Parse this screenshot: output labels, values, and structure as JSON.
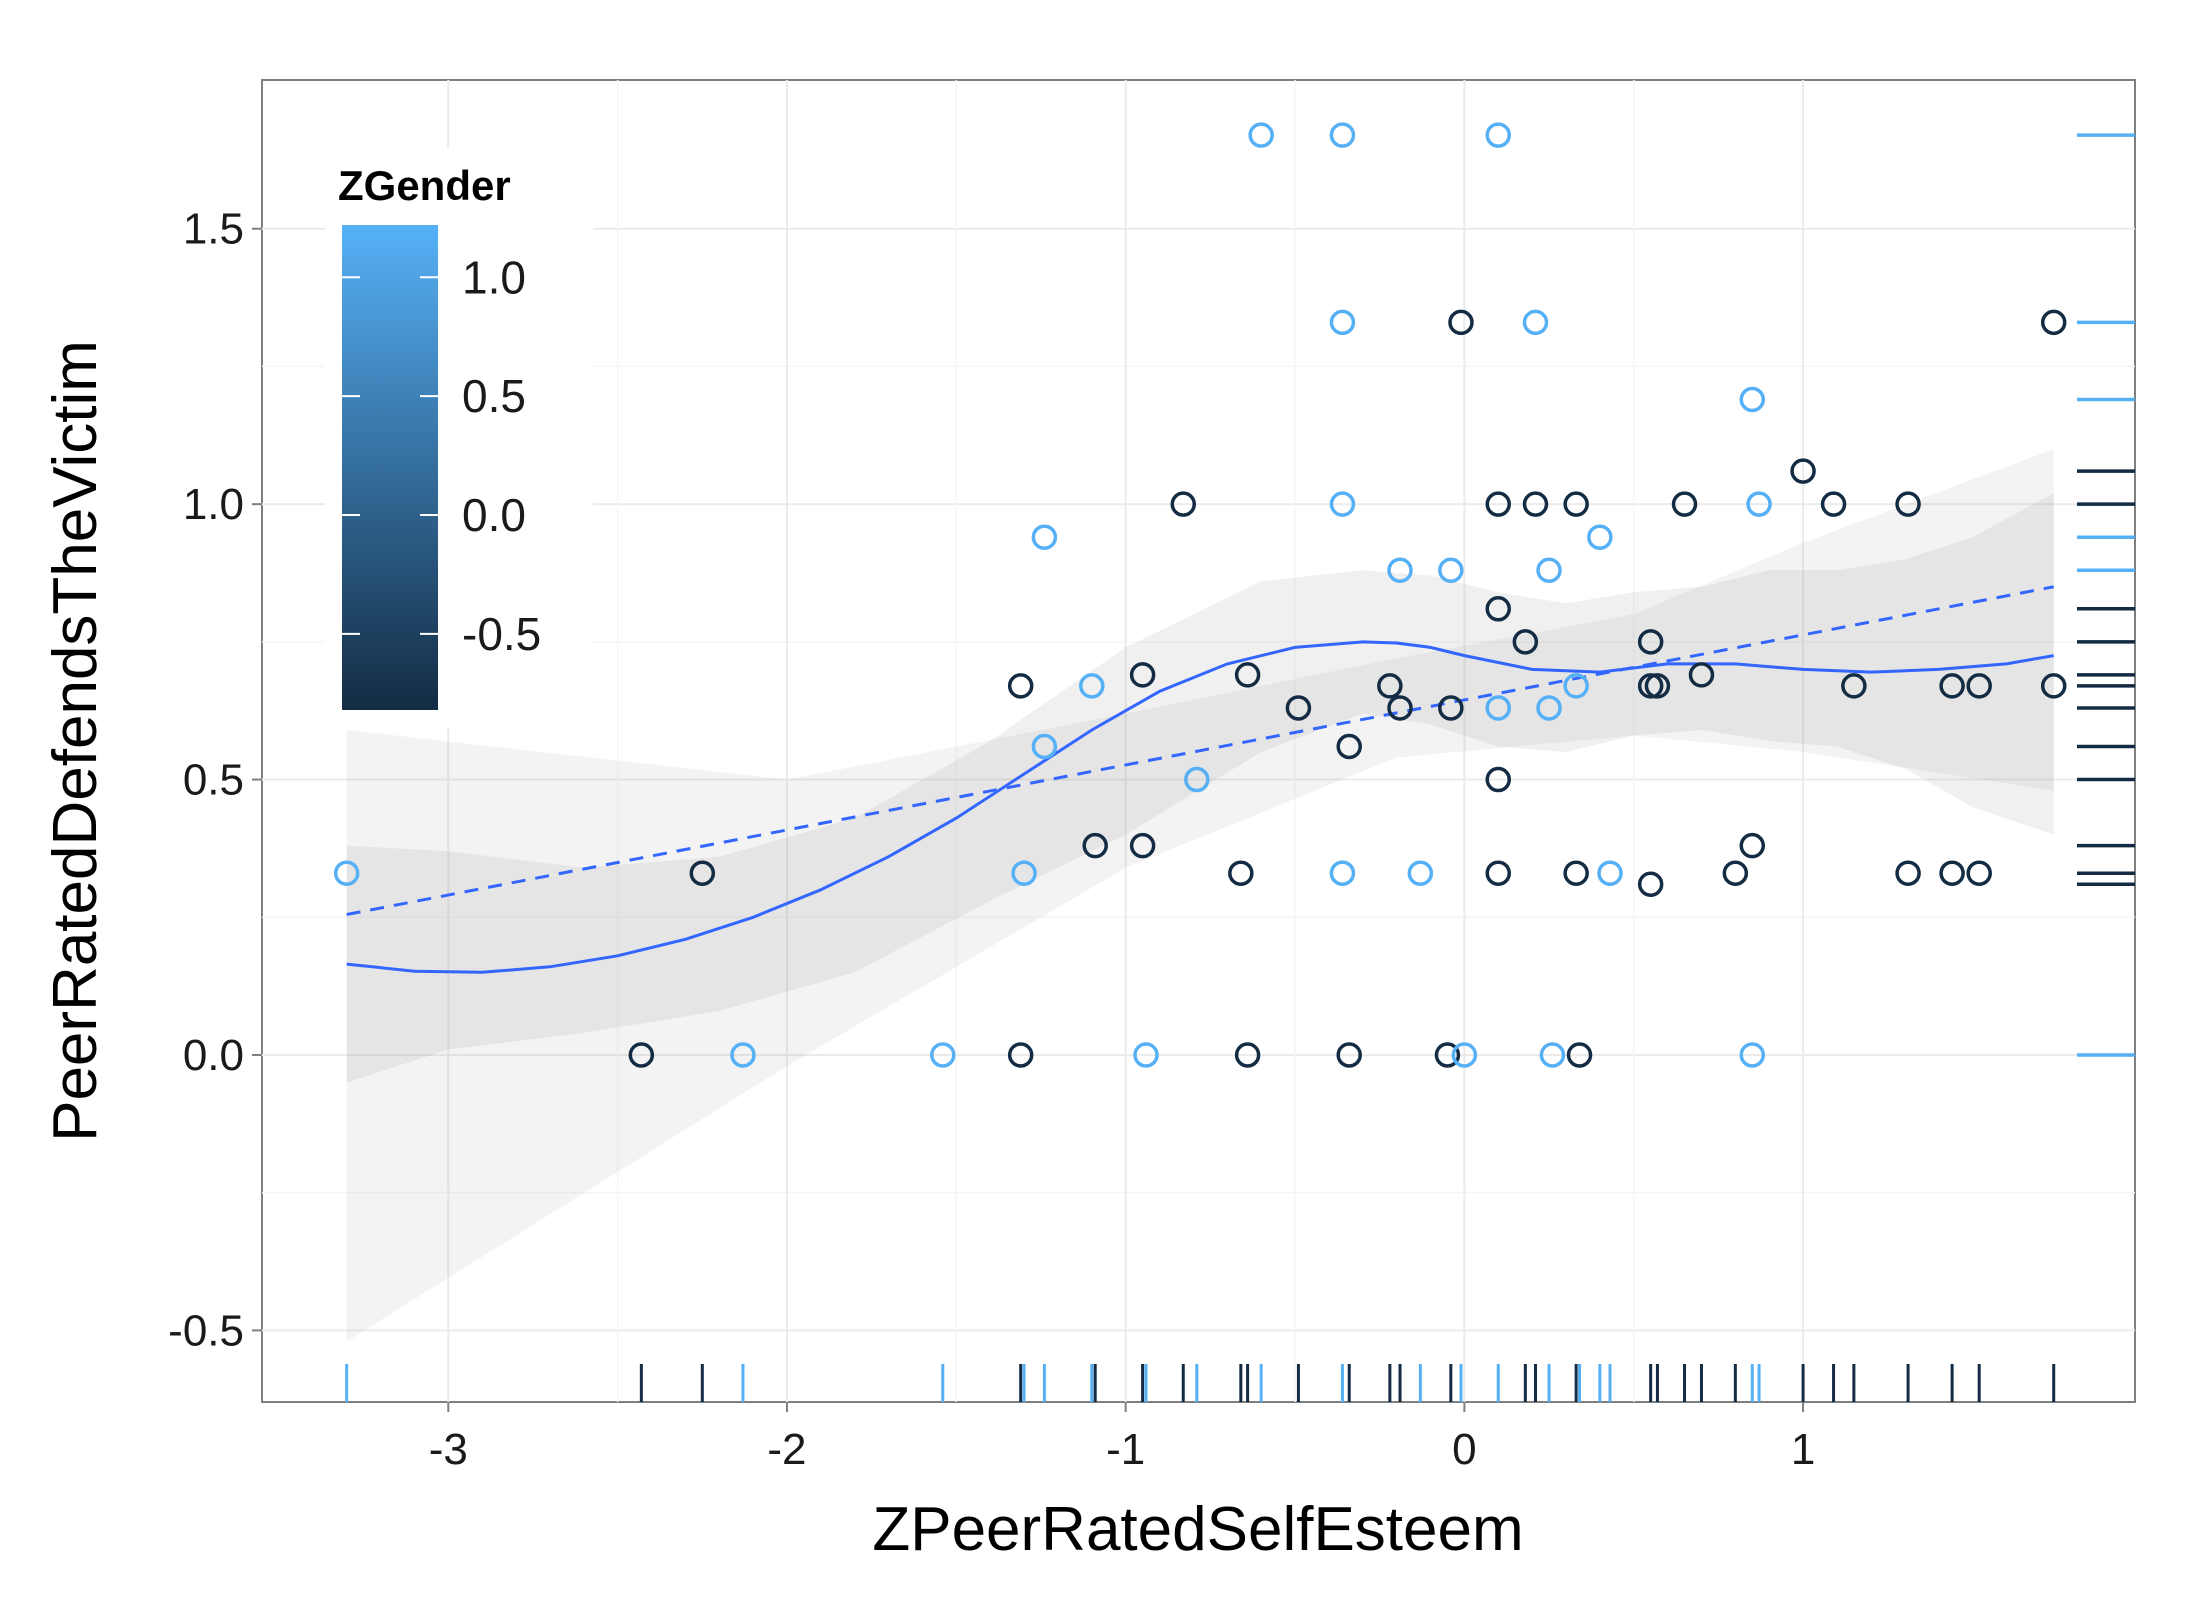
{
  "chart_data": {
    "type": "scatter",
    "title": "",
    "xlabel": "ZPeerRatedSelfEsteem",
    "ylabel": "PeerRatedDefendsTheVictim",
    "xlim": [
      -3.55,
      1.98
    ],
    "ylim": [
      -0.63,
      1.77
    ],
    "x_ticks": [
      -3,
      -2,
      -1,
      0,
      1
    ],
    "x_tick_labels": [
      "-3",
      "-2",
      "-1",
      "0",
      "1"
    ],
    "y_ticks": [
      -0.5,
      0.0,
      0.5,
      1.0,
      1.5
    ],
    "y_tick_labels": [
      "-0.5",
      "0.0",
      "0.5",
      "1.0",
      "1.5"
    ],
    "grid": true,
    "color_scale": {
      "variable": "ZGender",
      "low_color": "#132B43",
      "high_color": "#56B1F7",
      "domain": [
        -0.82,
        1.22
      ],
      "breaks": [
        1.0,
        0.5,
        0.0,
        -0.5
      ],
      "break_labels": [
        "1.0",
        "0.5",
        "0.0",
        "-0.5"
      ]
    },
    "legend": {
      "title": "ZGender",
      "placement": "top-left"
    },
    "points": [
      {
        "x": -3.3,
        "y": 0.33,
        "z": 1.21
      },
      {
        "x": -2.43,
        "y": 0.0,
        "z": -0.82
      },
      {
        "x": -2.25,
        "y": 0.33,
        "z": -0.82
      },
      {
        "x": -2.13,
        "y": 0.0,
        "z": 1.21
      },
      {
        "x": -1.54,
        "y": 0.0,
        "z": 1.21
      },
      {
        "x": -1.31,
        "y": 0.67,
        "z": -0.82
      },
      {
        "x": -1.31,
        "y": 0.0,
        "z": -0.82
      },
      {
        "x": -1.3,
        "y": 0.33,
        "z": 1.21
      },
      {
        "x": -1.24,
        "y": 0.94,
        "z": 1.21
      },
      {
        "x": -1.24,
        "y": 0.56,
        "z": 1.21
      },
      {
        "x": -1.1,
        "y": 0.67,
        "z": 1.21
      },
      {
        "x": -1.09,
        "y": 0.38,
        "z": -0.82
      },
      {
        "x": -0.95,
        "y": 0.69,
        "z": -0.82
      },
      {
        "x": -0.95,
        "y": 0.38,
        "z": -0.82
      },
      {
        "x": -0.94,
        "y": 0.0,
        "z": 1.21
      },
      {
        "x": -0.83,
        "y": 1.0,
        "z": -0.82
      },
      {
        "x": -0.79,
        "y": 0.5,
        "z": 1.21
      },
      {
        "x": -0.66,
        "y": 0.33,
        "z": -0.82
      },
      {
        "x": -0.64,
        "y": 0.69,
        "z": -0.82
      },
      {
        "x": -0.64,
        "y": 0.0,
        "z": -0.82
      },
      {
        "x": -0.6,
        "y": 1.67,
        "z": 1.21
      },
      {
        "x": -0.49,
        "y": 0.63,
        "z": -0.82
      },
      {
        "x": -0.36,
        "y": 1.67,
        "z": 1.21
      },
      {
        "x": -0.36,
        "y": 1.33,
        "z": 1.21
      },
      {
        "x": -0.36,
        "y": 1.0,
        "z": 1.21
      },
      {
        "x": -0.36,
        "y": 0.33,
        "z": 1.21
      },
      {
        "x": -0.34,
        "y": 0.56,
        "z": -0.82
      },
      {
        "x": -0.34,
        "y": 0.0,
        "z": -0.82
      },
      {
        "x": -0.22,
        "y": 0.67,
        "z": -0.82
      },
      {
        "x": -0.19,
        "y": 0.88,
        "z": 1.21
      },
      {
        "x": -0.19,
        "y": 0.63,
        "z": -0.82
      },
      {
        "x": -0.13,
        "y": 0.33,
        "z": 1.21
      },
      {
        "x": -0.04,
        "y": 0.88,
        "z": 1.21
      },
      {
        "x": -0.04,
        "y": 0.63,
        "z": -0.82
      },
      {
        "x": -0.05,
        "y": 0.0,
        "z": -0.82
      },
      {
        "x": -0.01,
        "y": 1.33,
        "z": -0.82
      },
      {
        "x": 0.0,
        "y": 0.0,
        "z": 1.21
      },
      {
        "x": 0.1,
        "y": 1.67,
        "z": 1.21
      },
      {
        "x": 0.1,
        "y": 1.0,
        "z": -0.82
      },
      {
        "x": 0.1,
        "y": 0.81,
        "z": -0.82
      },
      {
        "x": 0.1,
        "y": 0.63,
        "z": 1.21
      },
      {
        "x": 0.1,
        "y": 0.5,
        "z": -0.82
      },
      {
        "x": 0.1,
        "y": 0.33,
        "z": -0.82
      },
      {
        "x": 0.18,
        "y": 0.75,
        "z": -0.82
      },
      {
        "x": 0.21,
        "y": 1.33,
        "z": 1.21
      },
      {
        "x": 0.21,
        "y": 1.0,
        "z": -0.82
      },
      {
        "x": 0.25,
        "y": 0.88,
        "z": 1.21
      },
      {
        "x": 0.25,
        "y": 0.63,
        "z": 1.21
      },
      {
        "x": 0.26,
        "y": 0.0,
        "z": 1.21
      },
      {
        "x": 0.33,
        "y": 1.0,
        "z": -0.82
      },
      {
        "x": 0.33,
        "y": 0.33,
        "z": -0.82
      },
      {
        "x": 0.33,
        "y": 0.67,
        "z": 1.21
      },
      {
        "x": 0.34,
        "y": 0.0,
        "z": -0.82
      },
      {
        "x": 0.4,
        "y": 0.94,
        "z": 1.21
      },
      {
        "x": 0.43,
        "y": 0.33,
        "z": 1.21
      },
      {
        "x": 0.55,
        "y": 0.75,
        "z": -0.82
      },
      {
        "x": 0.55,
        "y": 0.67,
        "z": -0.82
      },
      {
        "x": 0.55,
        "y": 0.31,
        "z": -0.82
      },
      {
        "x": 0.57,
        "y": 0.67,
        "z": -0.82
      },
      {
        "x": 0.65,
        "y": 1.0,
        "z": -0.82
      },
      {
        "x": 0.7,
        "y": 0.69,
        "z": -0.82
      },
      {
        "x": 0.8,
        "y": 0.33,
        "z": -0.82
      },
      {
        "x": 0.85,
        "y": 1.19,
        "z": 1.21
      },
      {
        "x": 0.85,
        "y": 0.38,
        "z": -0.82
      },
      {
        "x": 0.85,
        "y": 0.0,
        "z": 1.21
      },
      {
        "x": 0.87,
        "y": 1.0,
        "z": 1.21
      },
      {
        "x": 1.0,
        "y": 1.06,
        "z": -0.82
      },
      {
        "x": 1.09,
        "y": 1.0,
        "z": -0.82
      },
      {
        "x": 1.15,
        "y": 0.67,
        "z": -0.82
      },
      {
        "x": 1.31,
        "y": 1.0,
        "z": -0.82
      },
      {
        "x": 1.31,
        "y": 0.33,
        "z": -0.82
      },
      {
        "x": 1.44,
        "y": 0.33,
        "z": -0.82
      },
      {
        "x": 1.44,
        "y": 0.67,
        "z": -0.82
      },
      {
        "x": 1.52,
        "y": 0.33,
        "z": -0.82
      },
      {
        "x": 1.52,
        "y": 0.67,
        "z": -0.82
      },
      {
        "x": 1.74,
        "y": 1.33,
        "z": -0.82
      },
      {
        "x": 1.74,
        "y": 0.67,
        "z": -0.82
      }
    ],
    "linear_fit": {
      "x": [
        -3.3,
        1.74
      ],
      "y": [
        0.255,
        0.85
      ]
    },
    "loess_fit": {
      "x": [
        -3.3,
        -3.1,
        -2.9,
        -2.7,
        -2.5,
        -2.3,
        -2.1,
        -1.9,
        -1.7,
        -1.5,
        -1.3,
        -1.1,
        -0.9,
        -0.7,
        -0.5,
        -0.3,
        -0.2,
        -0.1,
        0.0,
        0.2,
        0.4,
        0.6,
        0.8,
        1.0,
        1.2,
        1.4,
        1.6,
        1.74
      ],
      "y": [
        0.165,
        0.152,
        0.15,
        0.16,
        0.18,
        0.21,
        0.25,
        0.3,
        0.36,
        0.43,
        0.51,
        0.59,
        0.66,
        0.71,
        0.74,
        0.75,
        0.748,
        0.74,
        0.725,
        0.7,
        0.695,
        0.71,
        0.71,
        0.7,
        0.695,
        0.7,
        0.71,
        0.725
      ]
    },
    "loess_band": {
      "x": [
        -3.3,
        -3.0,
        -2.6,
        -2.2,
        -1.8,
        -1.4,
        -1.0,
        -0.6,
        -0.3,
        -0.1,
        0.1,
        0.3,
        0.5,
        0.7,
        0.9,
        1.1,
        1.3,
        1.5,
        1.74
      ],
      "lower": [
        -0.05,
        0.01,
        0.04,
        0.08,
        0.15,
        0.28,
        0.4,
        0.55,
        0.62,
        0.6,
        0.56,
        0.55,
        0.58,
        0.59,
        0.57,
        0.56,
        0.52,
        0.45,
        0.4
      ],
      "upper": [
        0.38,
        0.37,
        0.34,
        0.36,
        0.43,
        0.57,
        0.74,
        0.86,
        0.88,
        0.87,
        0.84,
        0.82,
        0.84,
        0.85,
        0.88,
        0.88,
        0.9,
        0.94,
        1.02
      ]
    },
    "linear_band": {
      "x": [
        -3.3,
        -2.0,
        -1.0,
        -0.2,
        0.5,
        1.0,
        1.74
      ],
      "lower": [
        -0.52,
        -0.02,
        0.34,
        0.54,
        0.58,
        0.55,
        0.48
      ],
      "upper": [
        0.59,
        0.5,
        0.62,
        0.72,
        0.8,
        0.93,
        1.1
      ]
    },
    "x_rug": [
      {
        "x": -3.3,
        "z": 1.21
      },
      {
        "x": -2.43,
        "z": -0.82
      },
      {
        "x": -2.25,
        "z": -0.82
      },
      {
        "x": -2.13,
        "z": 1.21
      },
      {
        "x": -1.54,
        "z": 1.21
      },
      {
        "x": -1.31,
        "z": -0.82
      },
      {
        "x": -1.3,
        "z": 1.21
      },
      {
        "x": -1.24,
        "z": 1.21
      },
      {
        "x": -1.1,
        "z": 1.21
      },
      {
        "x": -1.09,
        "z": -0.82
      },
      {
        "x": -0.95,
        "z": -0.82
      },
      {
        "x": -0.94,
        "z": 1.21
      },
      {
        "x": -0.83,
        "z": -0.82
      },
      {
        "x": -0.79,
        "z": 1.21
      },
      {
        "x": -0.66,
        "z": -0.82
      },
      {
        "x": -0.64,
        "z": -0.82
      },
      {
        "x": -0.6,
        "z": 1.21
      },
      {
        "x": -0.49,
        "z": -0.82
      },
      {
        "x": -0.36,
        "z": 1.21
      },
      {
        "x": -0.34,
        "z": -0.82
      },
      {
        "x": -0.22,
        "z": -0.82
      },
      {
        "x": -0.19,
        "z": -0.82
      },
      {
        "x": -0.13,
        "z": 1.21
      },
      {
        "x": -0.04,
        "z": -0.82
      },
      {
        "x": -0.01,
        "z": 1.21
      },
      {
        "x": 0.1,
        "z": 1.21
      },
      {
        "x": 0.18,
        "z": -0.82
      },
      {
        "x": 0.21,
        "z": -0.82
      },
      {
        "x": 0.25,
        "z": 1.21
      },
      {
        "x": 0.33,
        "z": -0.82
      },
      {
        "x": 0.34,
        "z": 1.21
      },
      {
        "x": 0.4,
        "z": 1.21
      },
      {
        "x": 0.43,
        "z": 1.21
      },
      {
        "x": 0.55,
        "z": -0.82
      },
      {
        "x": 0.57,
        "z": -0.82
      },
      {
        "x": 0.65,
        "z": -0.82
      },
      {
        "x": 0.7,
        "z": -0.82
      },
      {
        "x": 0.8,
        "z": -0.82
      },
      {
        "x": 0.85,
        "z": 1.21
      },
      {
        "x": 0.87,
        "z": 1.21
      },
      {
        "x": 1.0,
        "z": -0.82
      },
      {
        "x": 1.09,
        "z": -0.82
      },
      {
        "x": 1.15,
        "z": -0.82
      },
      {
        "x": 1.31,
        "z": -0.82
      },
      {
        "x": 1.44,
        "z": -0.82
      },
      {
        "x": 1.52,
        "z": -0.82
      },
      {
        "x": 1.74,
        "z": -0.82
      }
    ],
    "y_rug": [
      {
        "y": 1.67,
        "z": 1.21
      },
      {
        "y": 1.33,
        "z": 1.21
      },
      {
        "y": 1.19,
        "z": 1.21
      },
      {
        "y": 1.06,
        "z": -0.82
      },
      {
        "y": 1.0,
        "z": -0.82
      },
      {
        "y": 0.94,
        "z": 1.21
      },
      {
        "y": 0.88,
        "z": 1.21
      },
      {
        "y": 0.81,
        "z": -0.82
      },
      {
        "y": 0.75,
        "z": -0.82
      },
      {
        "y": 0.69,
        "z": -0.82
      },
      {
        "y": 0.67,
        "z": -0.82
      },
      {
        "y": 0.63,
        "z": -0.82
      },
      {
        "y": 0.56,
        "z": -0.82
      },
      {
        "y": 0.5,
        "z": -0.82
      },
      {
        "y": 0.38,
        "z": -0.82
      },
      {
        "y": 0.33,
        "z": -0.82
      },
      {
        "y": 0.31,
        "z": -0.82
      },
      {
        "y": 0.0,
        "z": 1.21
      }
    ]
  }
}
